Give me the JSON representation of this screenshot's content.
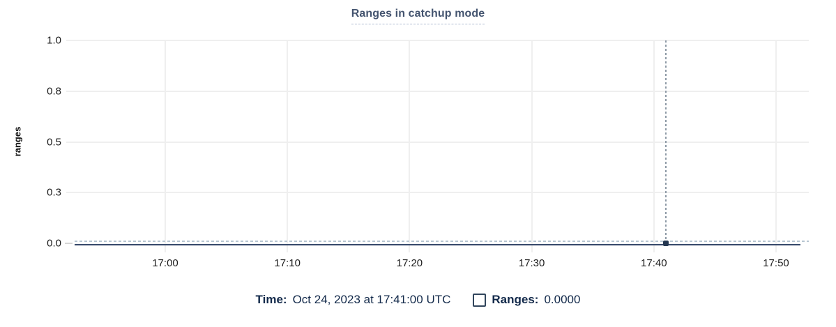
{
  "chart": {
    "title": "Ranges in catchup mode",
    "ylabel": "ranges"
  },
  "legend": {
    "time_label": "Time:",
    "time_value": "Oct 24, 2023 at 17:41:00 UTC",
    "series_label": "Ranges:",
    "series_value": "0.0000",
    "checkbox_checked": false
  },
  "colors": {
    "title": "#44546F",
    "legend_text": "#12294A",
    "series_line": "#36496B",
    "series_dashed_line": "#B7C6D2",
    "crosshair": "#8E9AA6",
    "hover_dot": "#233650",
    "gridline": "#EFEFEF"
  },
  "chart_data": {
    "type": "line",
    "title": "Ranges in catchup mode",
    "xlabel": "",
    "ylabel": "ranges",
    "x_tick_labels": [
      "17:00",
      "17:10",
      "17:20",
      "17:30",
      "17:40",
      "17:50"
    ],
    "y_tick_values": [
      0,
      0.25,
      0.5,
      0.75,
      1.0
    ],
    "y_tick_labels": [
      "0.0",
      "0.3",
      "0.5",
      "0.8",
      "1.0"
    ],
    "ylim": [
      0,
      1
    ],
    "grid": true,
    "legend_position": "bottom",
    "series": [
      {
        "name": "Ranges",
        "description": "flat line at value 0 across entire visible time range (approx 16:53 to 17:52)",
        "constant_value": 0
      }
    ],
    "hover": {
      "time_label": "Oct 24, 2023 at 17:41:00 UTC",
      "x_minutes_after_1700": 41,
      "value": 0.0,
      "value_label": "0.0000"
    }
  }
}
